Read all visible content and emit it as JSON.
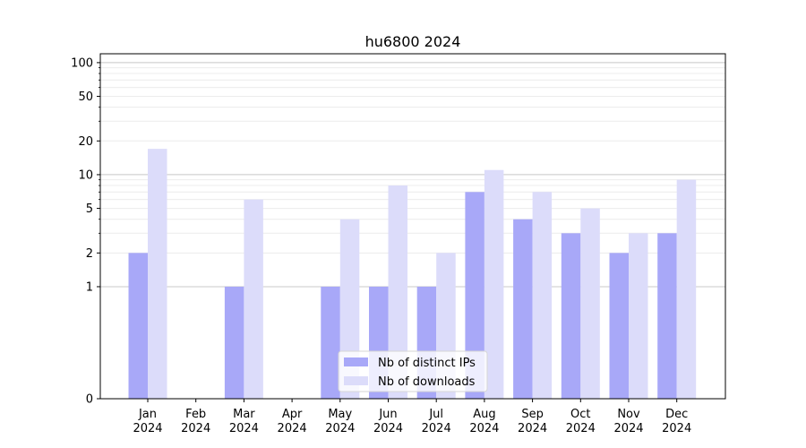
{
  "chart_data": {
    "type": "bar",
    "title": "hu6800 2024",
    "xlabel": "",
    "ylabel": "",
    "yscale": "symlog",
    "categories": [
      [
        "Jan",
        "2024"
      ],
      [
        "Feb",
        "2024"
      ],
      [
        "Mar",
        "2024"
      ],
      [
        "Apr",
        "2024"
      ],
      [
        "May",
        "2024"
      ],
      [
        "Jun",
        "2024"
      ],
      [
        "Jul",
        "2024"
      ],
      [
        "Aug",
        "2024"
      ],
      [
        "Sep",
        "2024"
      ],
      [
        "Oct",
        "2024"
      ],
      [
        "Nov",
        "2024"
      ],
      [
        "Dec",
        "2024"
      ]
    ],
    "series": [
      {
        "name": "Nb of distinct IPs",
        "color": "#a8a8f8",
        "values": [
          2,
          0,
          1,
          0,
          1,
          1,
          1,
          7,
          4,
          3,
          2,
          3
        ]
      },
      {
        "name": "Nb of downloads",
        "color": "#dcdcfa",
        "values": [
          17,
          0,
          6,
          0,
          4,
          8,
          2,
          11,
          7,
          5,
          3,
          9
        ]
      }
    ],
    "yticks": [
      "0",
      "1",
      "2",
      "5",
      "10",
      "20",
      "50",
      "100"
    ],
    "ytick_values": [
      0,
      1,
      2,
      5,
      10,
      20,
      50,
      100
    ],
    "ylim": [
      0,
      120
    ],
    "grid": true,
    "legend_position": "bottom-center"
  }
}
